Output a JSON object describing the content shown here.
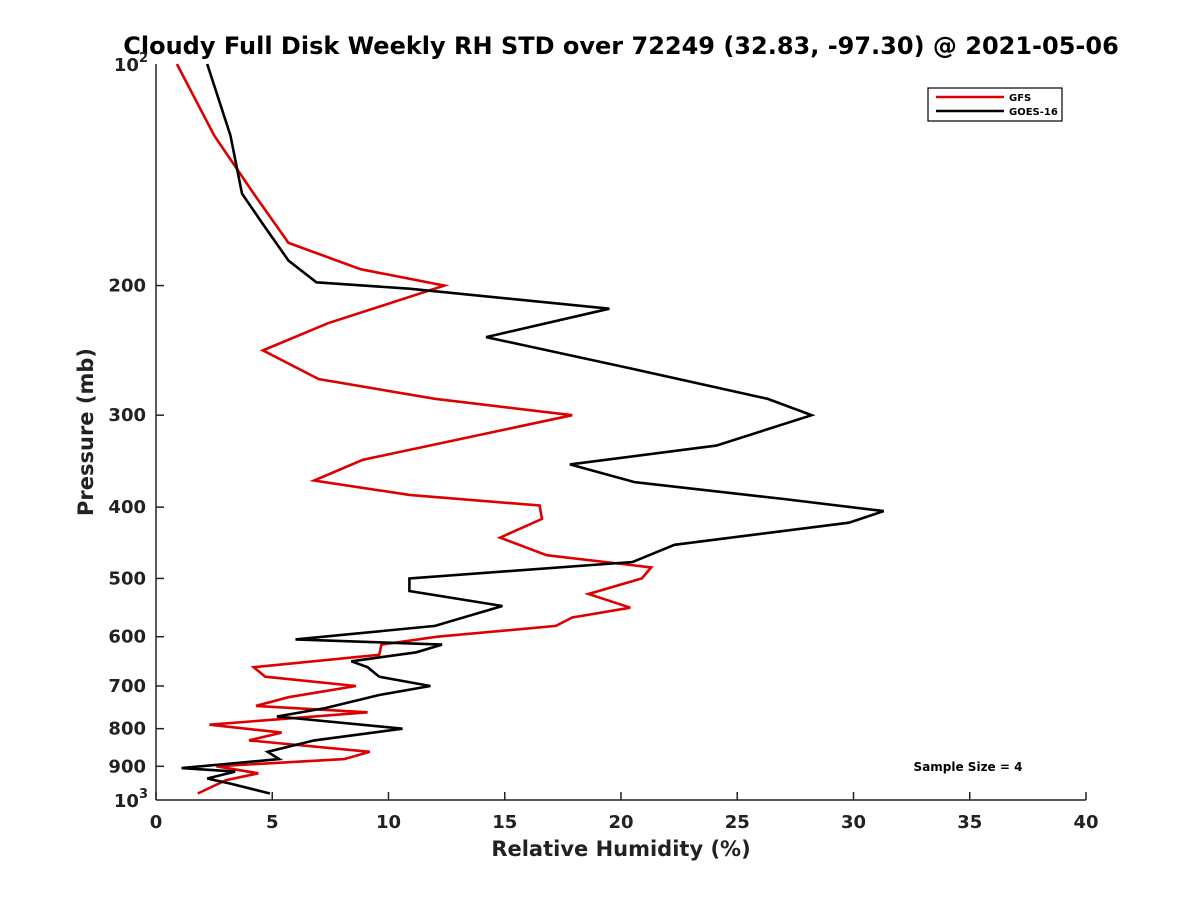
{
  "chart_data": {
    "type": "line",
    "title": "Cloudy Full Disk Weekly RH STD over 72249 (32.83, -97.30) @ 2021-05-06",
    "xlabel": "Relative Humidity (%)",
    "ylabel": "Pressure (mb)",
    "xlim": [
      0,
      40
    ],
    "ylim": [
      100,
      1000
    ],
    "y_scale": "log",
    "y_reversed": true,
    "grid": false,
    "legend_position": "top-right",
    "x_ticks": [
      0,
      5,
      10,
      15,
      20,
      25,
      30,
      35,
      40
    ],
    "x_tick_labels": [
      "0",
      "5",
      "10",
      "15",
      "20",
      "25",
      "30",
      "35",
      "40"
    ],
    "y_ticks": [
      200,
      300,
      400,
      500,
      600,
      700,
      800,
      900
    ],
    "y_tick_labels": [
      "200",
      "300",
      "400",
      "500",
      "600",
      "700",
      "800",
      "900"
    ],
    "y_end_labels": [
      {
        "value": 100,
        "base": "10",
        "exp": "2"
      },
      {
        "value": 1000,
        "base": "10",
        "exp": "3"
      }
    ],
    "annotation": "Sample Size = 4",
    "series": [
      {
        "name": "GFS",
        "color": "#dd0000",
        "points": [
          [
            0.9,
            100
          ],
          [
            2.5,
            125
          ],
          [
            4.2,
            150
          ],
          [
            5.7,
            175
          ],
          [
            8.8,
            190
          ],
          [
            12.4,
            200
          ],
          [
            7.4,
            225
          ],
          [
            4.6,
            245
          ],
          [
            7.0,
            268
          ],
          [
            12.0,
            285
          ],
          [
            17.9,
            300
          ],
          [
            8.9,
            345
          ],
          [
            6.8,
            368
          ],
          [
            10.9,
            385
          ],
          [
            16.5,
            398
          ],
          [
            16.6,
            415
          ],
          [
            14.8,
            440
          ],
          [
            16.8,
            465
          ],
          [
            21.3,
            483
          ],
          [
            20.9,
            500
          ],
          [
            18.6,
            525
          ],
          [
            20.4,
            548
          ],
          [
            17.9,
            565
          ],
          [
            17.2,
            580
          ],
          [
            12.1,
            600
          ],
          [
            9.7,
            615
          ],
          [
            9.6,
            635
          ],
          [
            4.2,
            660
          ],
          [
            4.7,
            680
          ],
          [
            8.6,
            700
          ],
          [
            5.7,
            725
          ],
          [
            4.3,
            745
          ],
          [
            9.1,
            760
          ],
          [
            2.3,
            790
          ],
          [
            5.4,
            810
          ],
          [
            4.0,
            830
          ],
          [
            9.2,
            860
          ],
          [
            8.1,
            880
          ],
          [
            2.6,
            900
          ],
          [
            4.4,
            920
          ],
          [
            3.0,
            940
          ],
          [
            1.8,
            980
          ]
        ]
      },
      {
        "name": "GOES-16",
        "color": "#000000",
        "points": [
          [
            2.2,
            100
          ],
          [
            3.2,
            125
          ],
          [
            3.7,
            150
          ],
          [
            4.6,
            165
          ],
          [
            5.7,
            185
          ],
          [
            6.9,
            198
          ],
          [
            10.9,
            202
          ],
          [
            19.5,
            215
          ],
          [
            14.2,
            235
          ],
          [
            20.6,
            260
          ],
          [
            26.3,
            285
          ],
          [
            28.2,
            300
          ],
          [
            24.1,
            330
          ],
          [
            17.8,
            350
          ],
          [
            20.6,
            370
          ],
          [
            27.0,
            390
          ],
          [
            31.3,
            405
          ],
          [
            29.8,
            420
          ],
          [
            22.3,
            450
          ],
          [
            20.5,
            475
          ],
          [
            10.9,
            500
          ],
          [
            10.9,
            520
          ],
          [
            14.9,
            545
          ],
          [
            12.0,
            580
          ],
          [
            6.0,
            605
          ],
          [
            12.3,
            615
          ],
          [
            11.2,
            630
          ],
          [
            8.4,
            648
          ],
          [
            9.1,
            660
          ],
          [
            9.6,
            680
          ],
          [
            11.8,
            700
          ],
          [
            9.6,
            720
          ],
          [
            7.3,
            750
          ],
          [
            5.2,
            770
          ],
          [
            10.6,
            800
          ],
          [
            6.8,
            830
          ],
          [
            4.8,
            860
          ],
          [
            5.3,
            880
          ],
          [
            1.1,
            905
          ],
          [
            3.4,
            915
          ],
          [
            2.2,
            935
          ],
          [
            3.2,
            950
          ],
          [
            4.9,
            980
          ]
        ]
      }
    ]
  }
}
